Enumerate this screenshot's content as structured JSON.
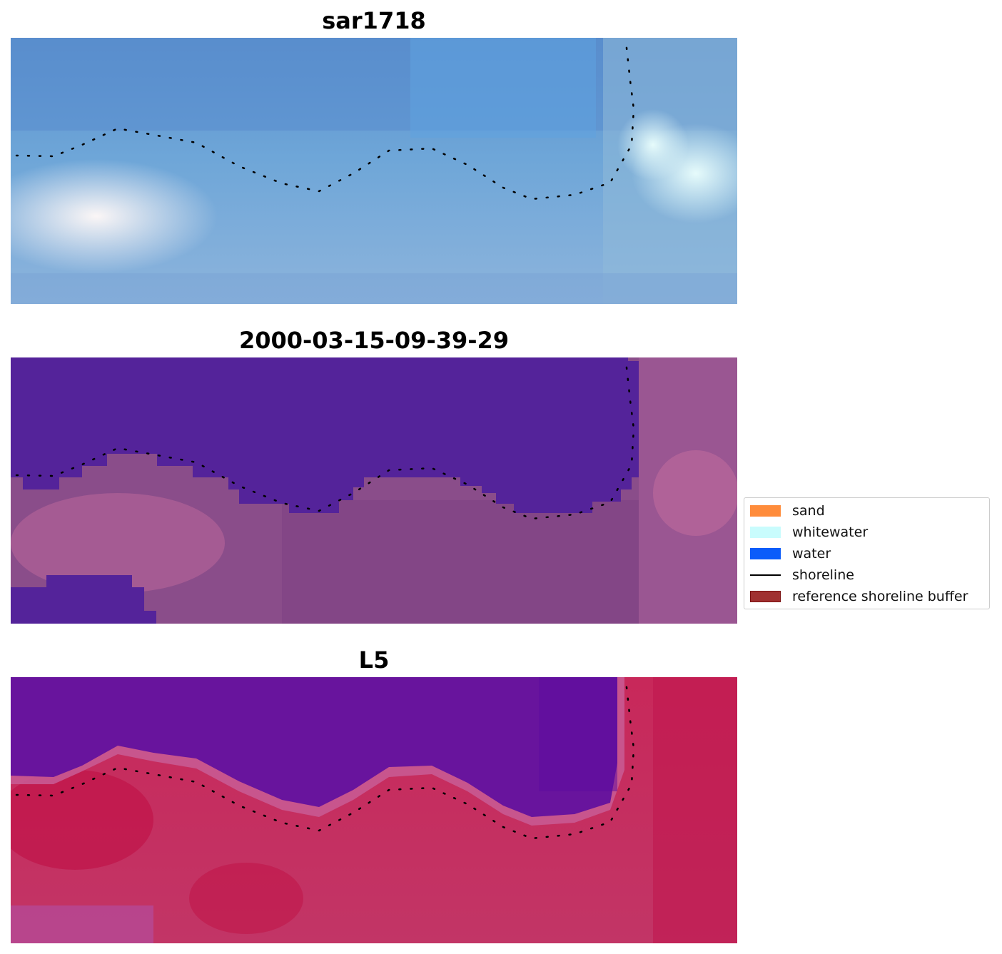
{
  "panels": [
    {
      "title": "sar1718",
      "colors": {
        "water": "#5a8fcf",
        "land": "#8aaed6",
        "accent": "#e9f6fb"
      }
    },
    {
      "title": "2000-03-15-09-39-29",
      "colors": {
        "water": "#55239a",
        "land": "#8e4e8c",
        "accent": "#c06a9c"
      }
    },
    {
      "title": "L5",
      "colors": {
        "water": "#68149d",
        "land": "#c92a5a",
        "accent": "#c45a94"
      }
    }
  ],
  "legend": {
    "items": [
      {
        "label": "sand",
        "color": "#ff8c3b",
        "kind": "patch"
      },
      {
        "label": "whitewater",
        "color": "#c9fcfd",
        "kind": "patch"
      },
      {
        "label": "water",
        "color": "#0b5cfa",
        "kind": "patch"
      },
      {
        "label": "shoreline",
        "color": "#000000",
        "kind": "line"
      },
      {
        "label": "reference shoreline buffer",
        "color": "#a03030",
        "kind": "patch"
      }
    ]
  }
}
